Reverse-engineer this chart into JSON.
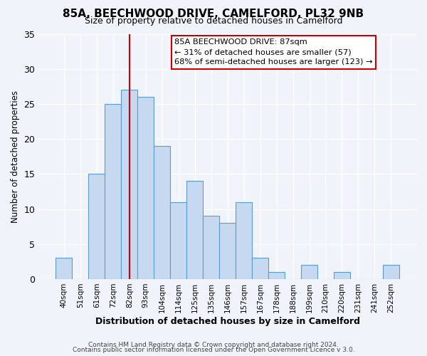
{
  "title": "85A, BEECHWOOD DRIVE, CAMELFORD, PL32 9NB",
  "subtitle": "Size of property relative to detached houses in Camelford",
  "xlabel": "Distribution of detached houses by size in Camelford",
  "ylabel": "Number of detached properties",
  "bar_labels": [
    "40sqm",
    "51sqm",
    "61sqm",
    "72sqm",
    "82sqm",
    "93sqm",
    "104sqm",
    "114sqm",
    "125sqm",
    "135sqm",
    "146sqm",
    "157sqm",
    "167sqm",
    "178sqm",
    "188sqm",
    "199sqm",
    "210sqm",
    "220sqm",
    "231sqm",
    "241sqm",
    "252sqm"
  ],
  "bar_values": [
    3,
    0,
    15,
    25,
    27,
    26,
    19,
    11,
    14,
    9,
    8,
    11,
    3,
    1,
    0,
    2,
    0,
    1,
    0,
    0,
    2
  ],
  "bar_color": "#c6d9f0",
  "bar_edge_color": "#5b9bd5",
  "vline_x": 4,
  "vline_color": "#cc0000",
  "ylim": [
    0,
    35
  ],
  "yticks": [
    0,
    5,
    10,
    15,
    20,
    25,
    30,
    35
  ],
  "annotation_title": "85A BEECHWOOD DRIVE: 87sqm",
  "annotation_line1": "← 31% of detached houses are smaller (57)",
  "annotation_line2": "68% of semi-detached houses are larger (123) →",
  "annotation_box_color": "#cc0000",
  "footer_line1": "Contains HM Land Registry data © Crown copyright and database right 2024.",
  "footer_line2": "Contains public sector information licensed under the Open Government Licence v 3.0.",
  "background_color": "#f0f4fa",
  "grid_color": "#ffffff"
}
